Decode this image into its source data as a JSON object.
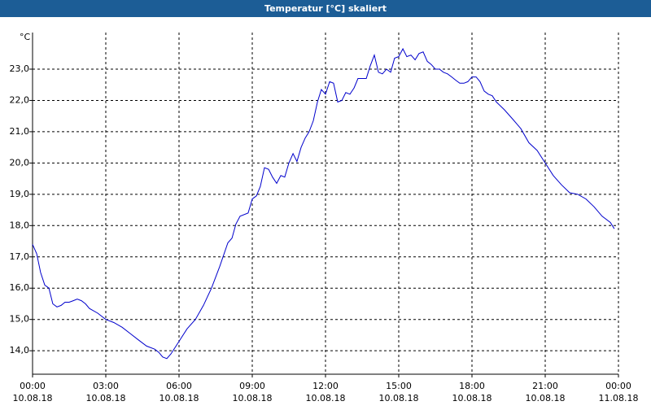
{
  "chart_data": {
    "type": "line",
    "title": "Temperatur [°C] skaliert",
    "y_unit": "°C",
    "xlim": [
      0,
      24
    ],
    "ylim": [
      13.25,
      24.17
    ],
    "grid": true,
    "xticks": [
      {
        "value": 0,
        "label": "00:00"
      },
      {
        "value": 3,
        "label": "03:00"
      },
      {
        "value": 6,
        "label": "06:00"
      },
      {
        "value": 9,
        "label": "09:00"
      },
      {
        "value": 12,
        "label": "12:00"
      },
      {
        "value": 15,
        "label": "15:00"
      },
      {
        "value": 18,
        "label": "18:00"
      },
      {
        "value": 21,
        "label": "21:00"
      },
      {
        "value": 24,
        "label": "00:00"
      }
    ],
    "xtick_dates": [
      "10.08.18",
      "10.08.18",
      "10.08.18",
      "10.08.18",
      "10.08.18",
      "10.08.18",
      "10.08.18",
      "10.08.18",
      "11.08.18"
    ],
    "yticks": [
      {
        "value": 14,
        "label": "14,0"
      },
      {
        "value": 15,
        "label": "15,0"
      },
      {
        "value": 16,
        "label": "16,0"
      },
      {
        "value": 17,
        "label": "17,0"
      },
      {
        "value": 18,
        "label": "18,0"
      },
      {
        "value": 19,
        "label": "19,0"
      },
      {
        "value": 20,
        "label": "20,0"
      },
      {
        "value": 21,
        "label": "21,0"
      },
      {
        "value": 22,
        "label": "22,0"
      },
      {
        "value": 23,
        "label": "23,0"
      }
    ],
    "x": [
      0,
      0.17,
      0.33,
      0.5,
      0.67,
      0.83,
      1,
      1.17,
      1.33,
      1.5,
      1.67,
      1.83,
      2,
      2.17,
      2.33,
      2.67,
      3,
      3.33,
      3.67,
      4,
      4.33,
      4.67,
      5,
      5.17,
      5.33,
      5.5,
      5.67,
      6,
      6.33,
      6.67,
      7,
      7.33,
      7.67,
      8,
      8.17,
      8.33,
      8.5,
      8.83,
      9,
      9.17,
      9.33,
      9.5,
      9.67,
      9.83,
      10,
      10.17,
      10.33,
      10.5,
      10.67,
      10.83,
      11,
      11.17,
      11.33,
      11.5,
      11.67,
      11.83,
      12,
      12.17,
      12.33,
      12.5,
      12.67,
      12.83,
      13,
      13.17,
      13.33,
      13.5,
      13.67,
      13.83,
      14,
      14.17,
      14.33,
      14.5,
      14.67,
      14.83,
      15,
      15.17,
      15.33,
      15.5,
      15.67,
      15.83,
      16,
      16.17,
      16.33,
      16.5,
      16.67,
      16.83,
      17,
      17.17,
      17.33,
      17.5,
      17.67,
      17.83,
      18,
      18.17,
      18.33,
      18.5,
      18.67,
      18.83,
      19,
      19.33,
      19.67,
      20,
      20.33,
      20.67,
      21,
      21.33,
      21.67,
      22,
      22.33,
      22.67,
      23,
      23.33,
      23.67,
      23.83
    ],
    "series": [
      {
        "color": "#0000cc",
        "values": [
          17.4,
          17.1,
          16.5,
          16.1,
          16.0,
          15.5,
          15.4,
          15.45,
          15.55,
          15.55,
          15.6,
          15.65,
          15.6,
          15.5,
          15.35,
          15.2,
          15.0,
          14.9,
          14.75,
          14.55,
          14.35,
          14.15,
          14.05,
          13.95,
          13.8,
          13.75,
          13.9,
          14.3,
          14.7,
          15.0,
          15.45,
          16.0,
          16.7,
          17.45,
          17.6,
          18.05,
          18.3,
          18.4,
          18.85,
          18.95,
          19.25,
          19.85,
          19.8,
          19.55,
          19.35,
          19.6,
          19.55,
          20.0,
          20.3,
          20.05,
          20.5,
          20.8,
          21.0,
          21.35,
          21.95,
          22.35,
          22.2,
          22.6,
          22.55,
          21.95,
          22.0,
          22.25,
          22.2,
          22.4,
          22.7,
          22.7,
          22.7,
          23.1,
          23.45,
          22.9,
          22.85,
          23.0,
          22.9,
          23.35,
          23.4,
          23.65,
          23.4,
          23.45,
          23.3,
          23.5,
          23.55,
          23.25,
          23.15,
          23.0,
          23.0,
          22.9,
          22.85,
          22.75,
          22.65,
          22.55,
          22.55,
          22.6,
          22.75,
          22.75,
          22.6,
          22.3,
          22.2,
          22.15,
          21.95,
          21.7,
          21.4,
          21.1,
          20.65,
          20.4,
          20.0,
          19.6,
          19.3,
          19.05,
          19.0,
          18.85,
          18.6,
          18.3,
          18.1,
          17.9
        ]
      }
    ]
  }
}
